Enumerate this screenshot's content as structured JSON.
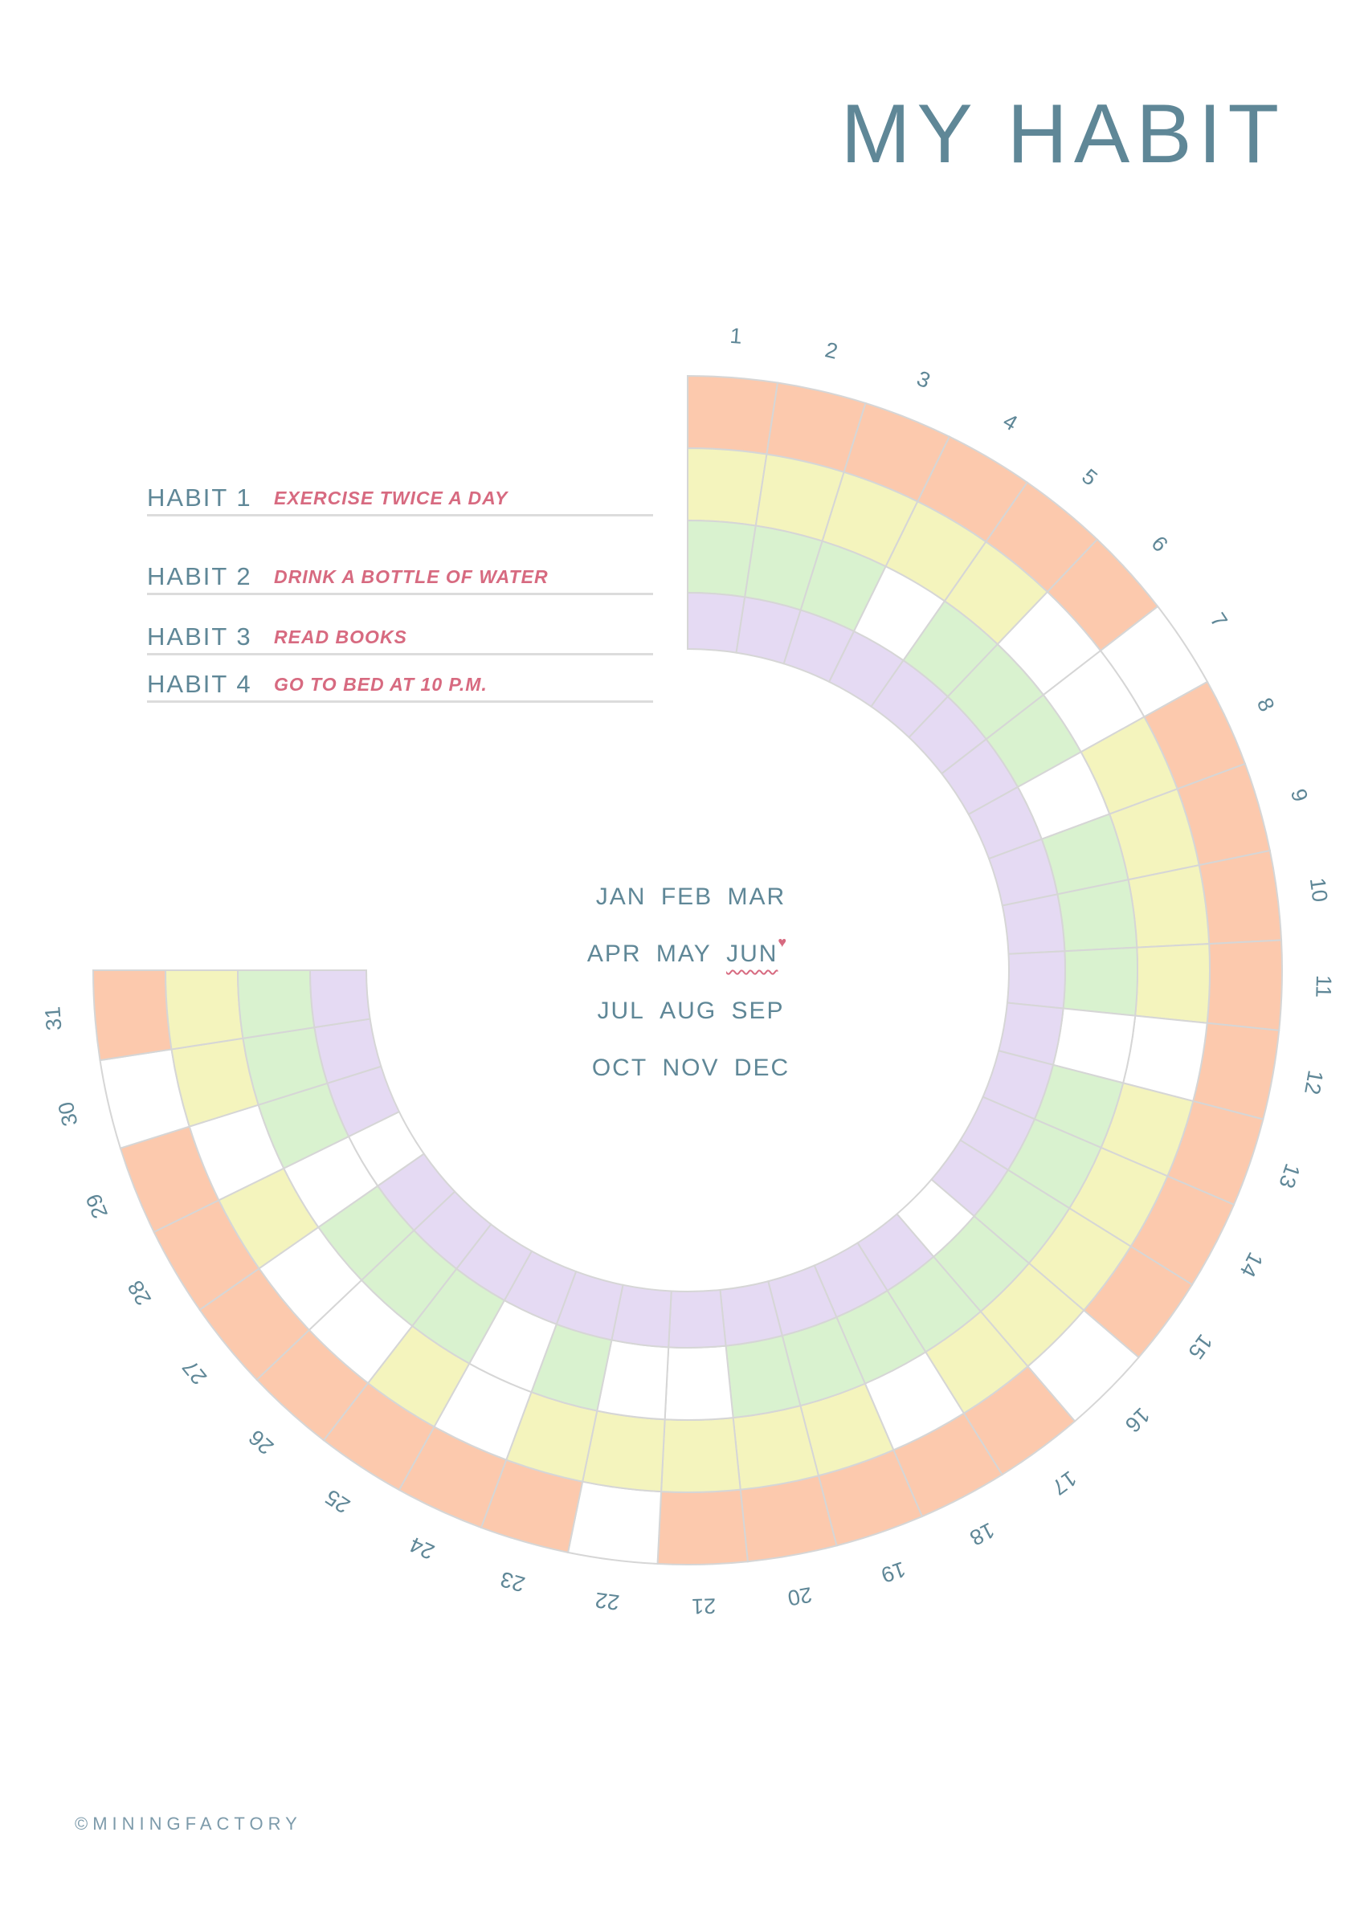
{
  "title": "MY HABIT",
  "habits": [
    {
      "label": "HABIT 1",
      "value": "EXERCISE TWICE A DAY"
    },
    {
      "label": "HABIT 2",
      "value": "DRINK A BOTTLE OF WATER"
    },
    {
      "label": "HABIT 3",
      "value": "READ BOOKS"
    },
    {
      "label": "HABIT 4",
      "value": "GO TO BED AT 10 P.M."
    }
  ],
  "months": [
    [
      "JAN",
      "FEB",
      "MAR"
    ],
    [
      "APR",
      "MAY",
      "JUN"
    ],
    [
      "JUL",
      "AUG",
      "SEP"
    ],
    [
      "OCT",
      "NOV",
      "DEC"
    ]
  ],
  "selected_month": "JUN",
  "days": [
    "1",
    "2",
    "3",
    "4",
    "5",
    "6",
    "7",
    "8",
    "9",
    "10",
    "11",
    "12",
    "13",
    "14",
    "15",
    "16",
    "17",
    "18",
    "19",
    "20",
    "21",
    "22",
    "23",
    "24",
    "25",
    "26",
    "27",
    "28",
    "29",
    "30",
    "31"
  ],
  "colors": {
    "habit1": "#fcc9ad",
    "habit2": "#f4f4bd",
    "habit3": "#d9f2cf",
    "habit4": "#e5daf3",
    "empty": "#ffffff",
    "grid": "#d6d6d6"
  },
  "tracker": {
    "habit1": [
      1,
      1,
      1,
      1,
      1,
      1,
      0,
      1,
      1,
      1,
      1,
      1,
      1,
      1,
      1,
      0,
      1,
      1,
      1,
      1,
      1,
      0,
      1,
      1,
      1,
      1,
      1,
      1,
      1,
      0,
      1
    ],
    "habit2": [
      1,
      1,
      1,
      1,
      1,
      0,
      0,
      1,
      1,
      1,
      1,
      0,
      1,
      1,
      1,
      1,
      1,
      0,
      1,
      1,
      1,
      1,
      1,
      0,
      1,
      0,
      0,
      1,
      0,
      1,
      1
    ],
    "habit3": [
      1,
      1,
      1,
      0,
      1,
      1,
      1,
      0,
      1,
      1,
      1,
      0,
      1,
      1,
      1,
      1,
      1,
      1,
      1,
      1,
      0,
      0,
      1,
      0,
      1,
      1,
      1,
      0,
      1,
      1,
      1
    ],
    "habit4": [
      1,
      1,
      1,
      1,
      1,
      1,
      1,
      1,
      1,
      1,
      1,
      1,
      1,
      1,
      1,
      0,
      1,
      1,
      1,
      1,
      1,
      1,
      1,
      1,
      1,
      1,
      1,
      0,
      1,
      1,
      1
    ]
  },
  "footer": "©MININGFACTORY"
}
